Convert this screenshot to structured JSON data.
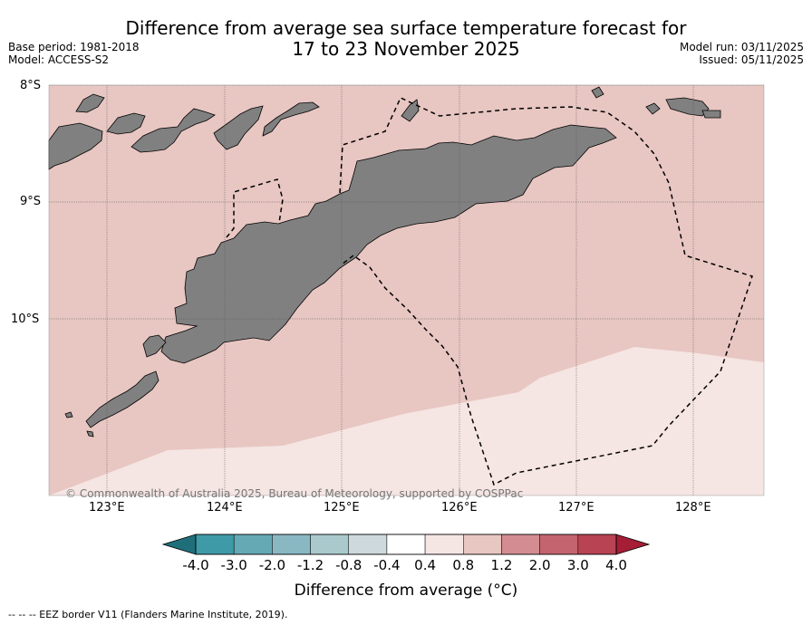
{
  "title_line1": "Difference from average sea surface temperature forecast for",
  "title_line2": "17 to 23 November 2025",
  "meta_left": {
    "base_period": "Base period: 1981-2018",
    "model": "Model: ACCESS-S2"
  },
  "meta_right": {
    "model_run": "Model run: 03/11/2025",
    "issued": "Issued: 05/11/2025"
  },
  "lat_labels": [
    "8°S",
    "9°S",
    "10°S"
  ],
  "lon_labels": [
    "123°E",
    "124°E",
    "125°E",
    "126°E",
    "127°E",
    "128°E"
  ],
  "copyright": "© Commonwealth of Australia 2025, Bureau of Meteorology, supported by COSPPac",
  "colorbar": {
    "ticks": [
      "-4.0",
      "-3.0",
      "-2.0",
      "-1.2",
      "-0.8",
      "-0.4",
      "0.4",
      "0.8",
      "1.2",
      "2.0",
      "3.0",
      "4.0"
    ],
    "colors": [
      "#1f6f7a",
      "#3f9aa7",
      "#65a9b5",
      "#89b8c3",
      "#a9c9cd",
      "#cdd9dc",
      "#ffffff",
      "#f5e5e3",
      "#e8c6c2",
      "#d38c92",
      "#c4646f",
      "#b84352",
      "#a61d36"
    ],
    "title": "Difference from average (°C)"
  },
  "colors": {
    "anomaly_0_4_to_0_8": "#f5e5e3",
    "anomaly_0_8_to_1_2": "#e8c6c2",
    "land": "#808080"
  },
  "footnote": "--  --  -- EEZ border V11 (Flanders Marine Institute, 2019)."
}
